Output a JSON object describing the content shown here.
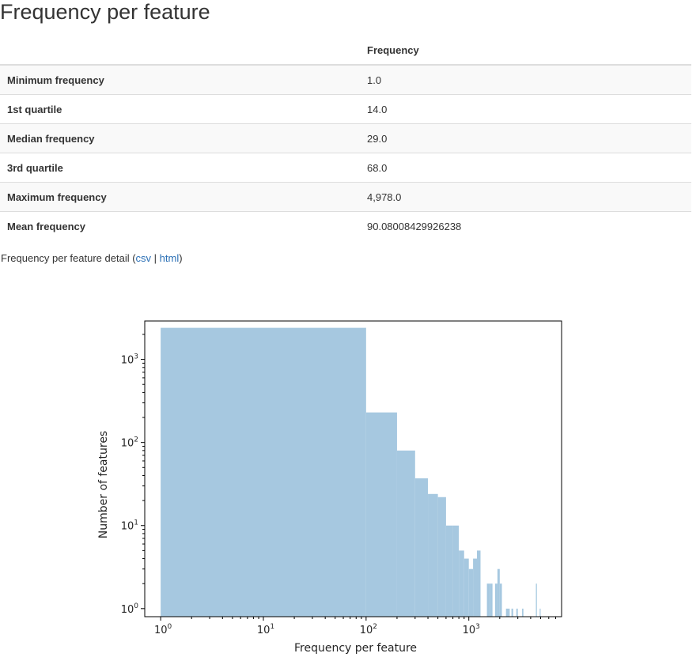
{
  "page_title": "Frequency per feature",
  "table": {
    "header_empty": "",
    "header": "Frequency",
    "rows": [
      {
        "label": "Minimum frequency",
        "value": "1.0"
      },
      {
        "label": "1st quartile",
        "value": "14.0"
      },
      {
        "label": "Median frequency",
        "value": "29.0"
      },
      {
        "label": "3rd quartile",
        "value": "68.0"
      },
      {
        "label": "Maximum frequency",
        "value": "4,978.0"
      },
      {
        "label": "Mean frequency",
        "value": "90.08008429926238"
      }
    ]
  },
  "detail": {
    "prefix": "Frequency per feature detail (",
    "csv_link": "csv",
    "separator": " | ",
    "html_link": "html",
    "suffix": ")"
  },
  "colors": {
    "bar_fill": "#a6c8e0",
    "link": "#2a6fb5",
    "row_stripe": "#f9f9f9",
    "border": "#dddddd"
  },
  "chart_data": {
    "type": "bar",
    "title": "",
    "xlabel": "Frequency per feature",
    "ylabel": "Number of features",
    "xscale": "log",
    "yscale": "log",
    "xlim": [
      0.7,
      8000
    ],
    "ylim": [
      0.8,
      2900
    ],
    "xticks": [
      {
        "value": 1,
        "label_base": "10",
        "label_exp": "0"
      },
      {
        "value": 10,
        "label_base": "10",
        "label_exp": "1"
      },
      {
        "value": 100,
        "label_base": "10",
        "label_exp": "2"
      },
      {
        "value": 1000,
        "label_base": "10",
        "label_exp": "3"
      }
    ],
    "yticks": [
      {
        "value": 1,
        "label_base": "10",
        "label_exp": "0"
      },
      {
        "value": 10,
        "label_base": "10",
        "label_exp": "1"
      },
      {
        "value": 100,
        "label_base": "10",
        "label_exp": "2"
      },
      {
        "value": 1000,
        "label_base": "10",
        "label_exp": "3"
      }
    ],
    "grid": false,
    "bins": [
      {
        "x0": 1,
        "x1": 100,
        "count": 2400
      },
      {
        "x0": 100,
        "x1": 200,
        "count": 230
      },
      {
        "x0": 200,
        "x1": 300,
        "count": 80
      },
      {
        "x0": 300,
        "x1": 400,
        "count": 37
      },
      {
        "x0": 400,
        "x1": 500,
        "count": 24
      },
      {
        "x0": 500,
        "x1": 600,
        "count": 22
      },
      {
        "x0": 600,
        "x1": 700,
        "count": 10
      },
      {
        "x0": 700,
        "x1": 800,
        "count": 10
      },
      {
        "x0": 800,
        "x1": 900,
        "count": 5
      },
      {
        "x0": 900,
        "x1": 1000,
        "count": 4
      },
      {
        "x0": 1000,
        "x1": 1100,
        "count": 3
      },
      {
        "x0": 1100,
        "x1": 1200,
        "count": 4
      },
      {
        "x0": 1200,
        "x1": 1300,
        "count": 5
      },
      {
        "x0": 1500,
        "x1": 1600,
        "count": 2
      },
      {
        "x0": 1600,
        "x1": 1700,
        "count": 2
      },
      {
        "x0": 1800,
        "x1": 1900,
        "count": 2
      },
      {
        "x0": 1900,
        "x1": 2000,
        "count": 3
      },
      {
        "x0": 2000,
        "x1": 2100,
        "count": 2
      },
      {
        "x0": 2300,
        "x1": 2400,
        "count": 1
      },
      {
        "x0": 2400,
        "x1": 2500,
        "count": 1
      },
      {
        "x0": 2600,
        "x1": 2700,
        "count": 1
      },
      {
        "x0": 2900,
        "x1": 3000,
        "count": 1
      },
      {
        "x0": 3300,
        "x1": 3400,
        "count": 1
      },
      {
        "x0": 4500,
        "x1": 4600,
        "count": 2
      },
      {
        "x0": 4900,
        "x1": 5000,
        "count": 1
      }
    ]
  }
}
